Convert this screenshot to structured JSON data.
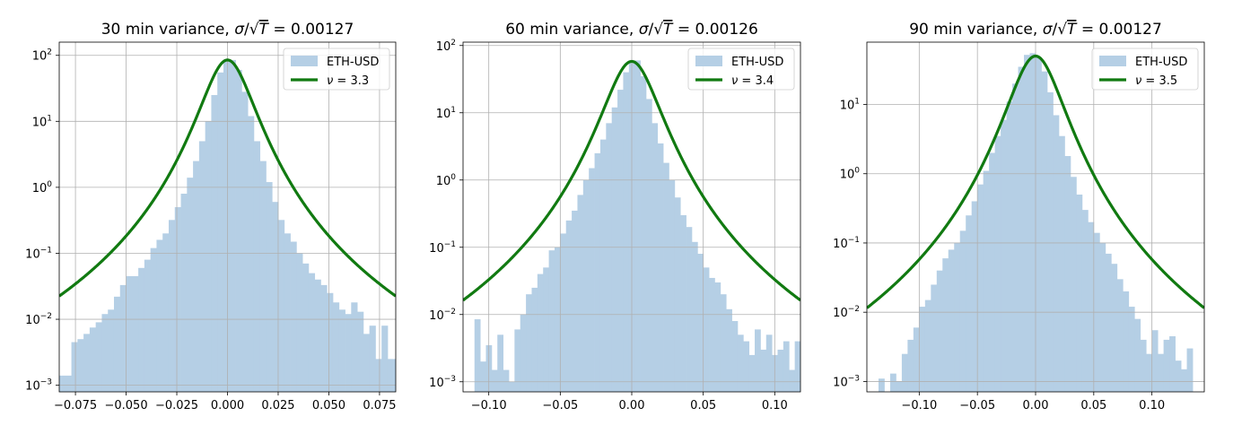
{
  "chart_data": [
    {
      "type": "bar",
      "title": {
        "prefix": "30 min variance, ",
        "sigma": "σ",
        "slash": "/",
        "sqrt": "√",
        "T": "T",
        "eq": " = ",
        "value": "0.00127"
      },
      "xlim": [
        -0.083,
        0.083
      ],
      "ylim_log10": [
        -3.1,
        2.2
      ],
      "yscale": "log",
      "grid": true,
      "legend_position": "top-right",
      "xticks": [
        -0.075,
        -0.05,
        -0.025,
        0.0,
        0.025,
        0.05,
        0.075
      ],
      "xtick_labels": [
        "−0.075",
        "−0.050",
        "−0.025",
        "0.000",
        "0.025",
        "0.050",
        "0.075"
      ],
      "yticks_exp": [
        "−3",
        "−2",
        "−1",
        "0",
        "1",
        "2"
      ],
      "legend": {
        "hist_label": "ETH-USD",
        "fit_nu_symbol": "ν",
        "fit_eq": " = ",
        "fit_nu_value": "3.3"
      },
      "fit": {
        "nu": 3.3,
        "peak": 85
      },
      "histogram": {
        "bin_edges": [
          -0.083,
          -0.077,
          -0.074,
          -0.071,
          -0.068,
          -0.065,
          -0.062,
          -0.059,
          -0.056,
          -0.053,
          -0.05,
          -0.047,
          -0.044,
          -0.041,
          -0.038,
          -0.035,
          -0.032,
          -0.029,
          -0.026,
          -0.023,
          -0.02,
          -0.017,
          -0.014,
          -0.011,
          -0.008,
          -0.005,
          -0.002,
          0.001,
          0.004,
          0.007,
          0.01,
          0.013,
          0.016,
          0.019,
          0.022,
          0.025,
          0.028,
          0.031,
          0.034,
          0.037,
          0.04,
          0.043,
          0.046,
          0.049,
          0.052,
          0.055,
          0.058,
          0.061,
          0.064,
          0.067,
          0.07,
          0.073,
          0.076,
          0.079,
          0.083
        ],
        "counts": [
          0.0014,
          0.0045,
          0.005,
          0.006,
          0.0075,
          0.009,
          0.012,
          0.014,
          0.022,
          0.033,
          0.045,
          0.045,
          0.06,
          0.08,
          0.12,
          0.16,
          0.2,
          0.32,
          0.5,
          0.8,
          1.4,
          2.5,
          5,
          10,
          25,
          55,
          85,
          85,
          60,
          28,
          12,
          5,
          2.5,
          1.2,
          0.6,
          0.32,
          0.2,
          0.15,
          0.1,
          0.07,
          0.05,
          0.04,
          0.033,
          0.025,
          0.018,
          0.014,
          0.012,
          0.018,
          0.013,
          0.006,
          0.008,
          0.0025,
          0.008,
          0.0025
        ]
      }
    },
    {
      "type": "bar",
      "title": {
        "prefix": "60 min variance, ",
        "sigma": "σ",
        "slash": "/",
        "sqrt": "√",
        "T": "T",
        "eq": " = ",
        "value": "0.00126"
      },
      "xlim": [
        -0.118,
        0.118
      ],
      "ylim_log10": [
        -3.15,
        2.05
      ],
      "yscale": "log",
      "grid": true,
      "legend_position": "top-right",
      "xticks": [
        -0.1,
        -0.05,
        0.0,
        0.05,
        0.1
      ],
      "xtick_labels": [
        "−0.10",
        "−0.05",
        "0.00",
        "0.05",
        "0.10"
      ],
      "yticks_exp": [
        "−3",
        "−2",
        "−1",
        "0",
        "1",
        "2"
      ],
      "legend": {
        "hist_label": "ETH-USD",
        "fit_nu_symbol": "ν",
        "fit_eq": " = ",
        "fit_nu_value": "3.4"
      },
      "fit": {
        "nu": 3.4,
        "peak": 58
      },
      "histogram": {
        "bin_edges": [
          -0.118,
          -0.114,
          -0.11,
          -0.106,
          -0.102,
          -0.098,
          -0.094,
          -0.09,
          -0.086,
          -0.082,
          -0.078,
          -0.074,
          -0.07,
          -0.066,
          -0.062,
          -0.058,
          -0.054,
          -0.05,
          -0.046,
          -0.042,
          -0.038,
          -0.034,
          -0.03,
          -0.026,
          -0.022,
          -0.018,
          -0.014,
          -0.01,
          -0.006,
          -0.002,
          0.002,
          0.006,
          0.01,
          0.014,
          0.018,
          0.022,
          0.026,
          0.03,
          0.034,
          0.038,
          0.042,
          0.046,
          0.05,
          0.054,
          0.058,
          0.062,
          0.066,
          0.07,
          0.074,
          0.078,
          0.082,
          0.086,
          0.09,
          0.094,
          0.098,
          0.102,
          0.106,
          0.11,
          0.114,
          0.118
        ],
        "counts": [
          0.0001,
          0.0001,
          0.0085,
          0.002,
          0.0035,
          0.0015,
          0.005,
          0.0015,
          0.001,
          0.006,
          0.01,
          0.02,
          0.025,
          0.04,
          0.05,
          0.09,
          0.1,
          0.16,
          0.25,
          0.35,
          0.6,
          1.0,
          1.5,
          2.5,
          4,
          7,
          12,
          22,
          40,
          58,
          60,
          35,
          16,
          7,
          3.5,
          1.8,
          1.0,
          0.55,
          0.3,
          0.2,
          0.12,
          0.08,
          0.05,
          0.035,
          0.03,
          0.02,
          0.012,
          0.008,
          0.005,
          0.004,
          0.0025,
          0.006,
          0.003,
          0.005,
          0.0025,
          0.003,
          0.004,
          0.0015,
          0.004
        ]
      }
    },
    {
      "type": "bar",
      "title": {
        "prefix": "90 min variance, ",
        "sigma": "σ",
        "slash": "/",
        "sqrt": "√",
        "T": "T",
        "eq": " = ",
        "value": "0.00127"
      },
      "xlim": [
        -0.145,
        0.145
      ],
      "ylim_log10": [
        -3.15,
        1.9
      ],
      "yscale": "log",
      "grid": true,
      "legend_position": "top-right",
      "xticks": [
        -0.1,
        -0.05,
        0.0,
        0.05,
        0.1
      ],
      "xtick_labels": [
        "−0.10",
        "−0.05",
        "0.00",
        "0.05",
        "0.10"
      ],
      "yticks_exp": [
        "−3",
        "−2",
        "−1",
        "0",
        "1"
      ],
      "legend": {
        "hist_label": "ETH-USD",
        "fit_nu_symbol": "ν",
        "fit_eq": " = ",
        "fit_nu_value": "3.5"
      },
      "fit": {
        "nu": 3.5,
        "peak": 50
      },
      "histogram": {
        "bin_edges": [
          -0.135,
          -0.13,
          -0.125,
          -0.12,
          -0.115,
          -0.11,
          -0.105,
          -0.1,
          -0.095,
          -0.09,
          -0.085,
          -0.08,
          -0.075,
          -0.07,
          -0.065,
          -0.06,
          -0.055,
          -0.05,
          -0.045,
          -0.04,
          -0.035,
          -0.03,
          -0.025,
          -0.02,
          -0.015,
          -0.01,
          -0.005,
          0.0,
          0.005,
          0.01,
          0.015,
          0.02,
          0.025,
          0.03,
          0.035,
          0.04,
          0.045,
          0.05,
          0.055,
          0.06,
          0.065,
          0.07,
          0.075,
          0.08,
          0.085,
          0.09,
          0.095,
          0.1,
          0.105,
          0.11,
          0.115,
          0.12,
          0.125,
          0.13,
          0.135
        ],
        "counts": [
          0.0011,
          0.0001,
          0.0013,
          0.001,
          0.0025,
          0.004,
          0.006,
          0.012,
          0.015,
          0.025,
          0.04,
          0.06,
          0.08,
          0.1,
          0.15,
          0.25,
          0.4,
          0.7,
          1.1,
          2,
          3.5,
          6,
          11,
          20,
          35,
          52,
          55,
          48,
          30,
          15,
          7,
          3.5,
          1.8,
          0.9,
          0.5,
          0.3,
          0.2,
          0.14,
          0.1,
          0.07,
          0.05,
          0.03,
          0.02,
          0.012,
          0.008,
          0.004,
          0.0025,
          0.0055,
          0.0025,
          0.004,
          0.0045,
          0.002,
          0.0015,
          0.003
        ]
      }
    }
  ],
  "colors": {
    "hist": "#b5cfe5",
    "fit": "#117a11",
    "grid": "#b0b0b0"
  }
}
